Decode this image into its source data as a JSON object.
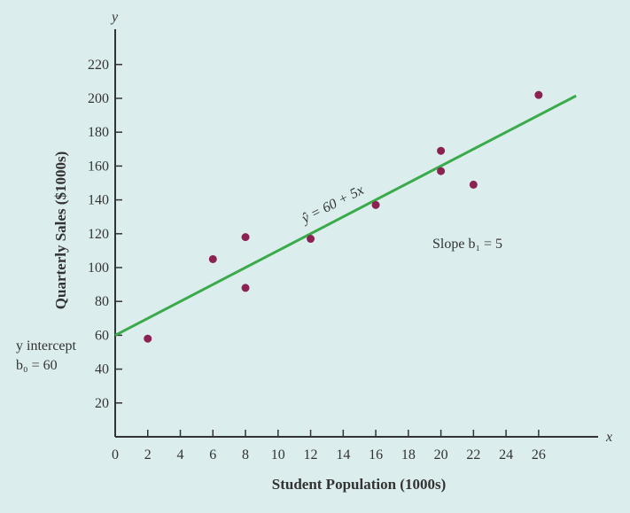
{
  "chart_data": {
    "type": "scatter",
    "title": "",
    "xlabel": "Student Population (1000s)",
    "ylabel": "Quarterly Sales ($1000s)",
    "x_axis_symbol": "x",
    "y_axis_symbol": "y",
    "xlim": [
      0,
      29
    ],
    "ylim": [
      0,
      235
    ],
    "x_ticks": [
      0,
      2,
      4,
      6,
      8,
      10,
      12,
      14,
      16,
      18,
      20,
      22,
      24,
      26
    ],
    "y_ticks": [
      20,
      40,
      60,
      80,
      100,
      120,
      140,
      160,
      180,
      200,
      220
    ],
    "points": [
      {
        "x": 2,
        "y": 58
      },
      {
        "x": 6,
        "y": 105
      },
      {
        "x": 8,
        "y": 88
      },
      {
        "x": 8,
        "y": 118
      },
      {
        "x": 12,
        "y": 117
      },
      {
        "x": 16,
        "y": 137
      },
      {
        "x": 20,
        "y": 157
      },
      {
        "x": 20,
        "y": 169
      },
      {
        "x": 22,
        "y": 149
      },
      {
        "x": 26,
        "y": 202
      }
    ],
    "regression": {
      "intercept": 60,
      "slope": 5,
      "x_range": [
        0,
        28.3
      ]
    },
    "annotations": {
      "equation": "ŷ = 60 + 5x",
      "slope": "Slope b₁ = 5",
      "intercept_line1": "y intercept",
      "intercept_line2": "b₀ = 60"
    },
    "colors": {
      "points": "#8b2252",
      "line": "#3aaa4a",
      "axis": "#333333",
      "background": "#dcedee"
    }
  }
}
